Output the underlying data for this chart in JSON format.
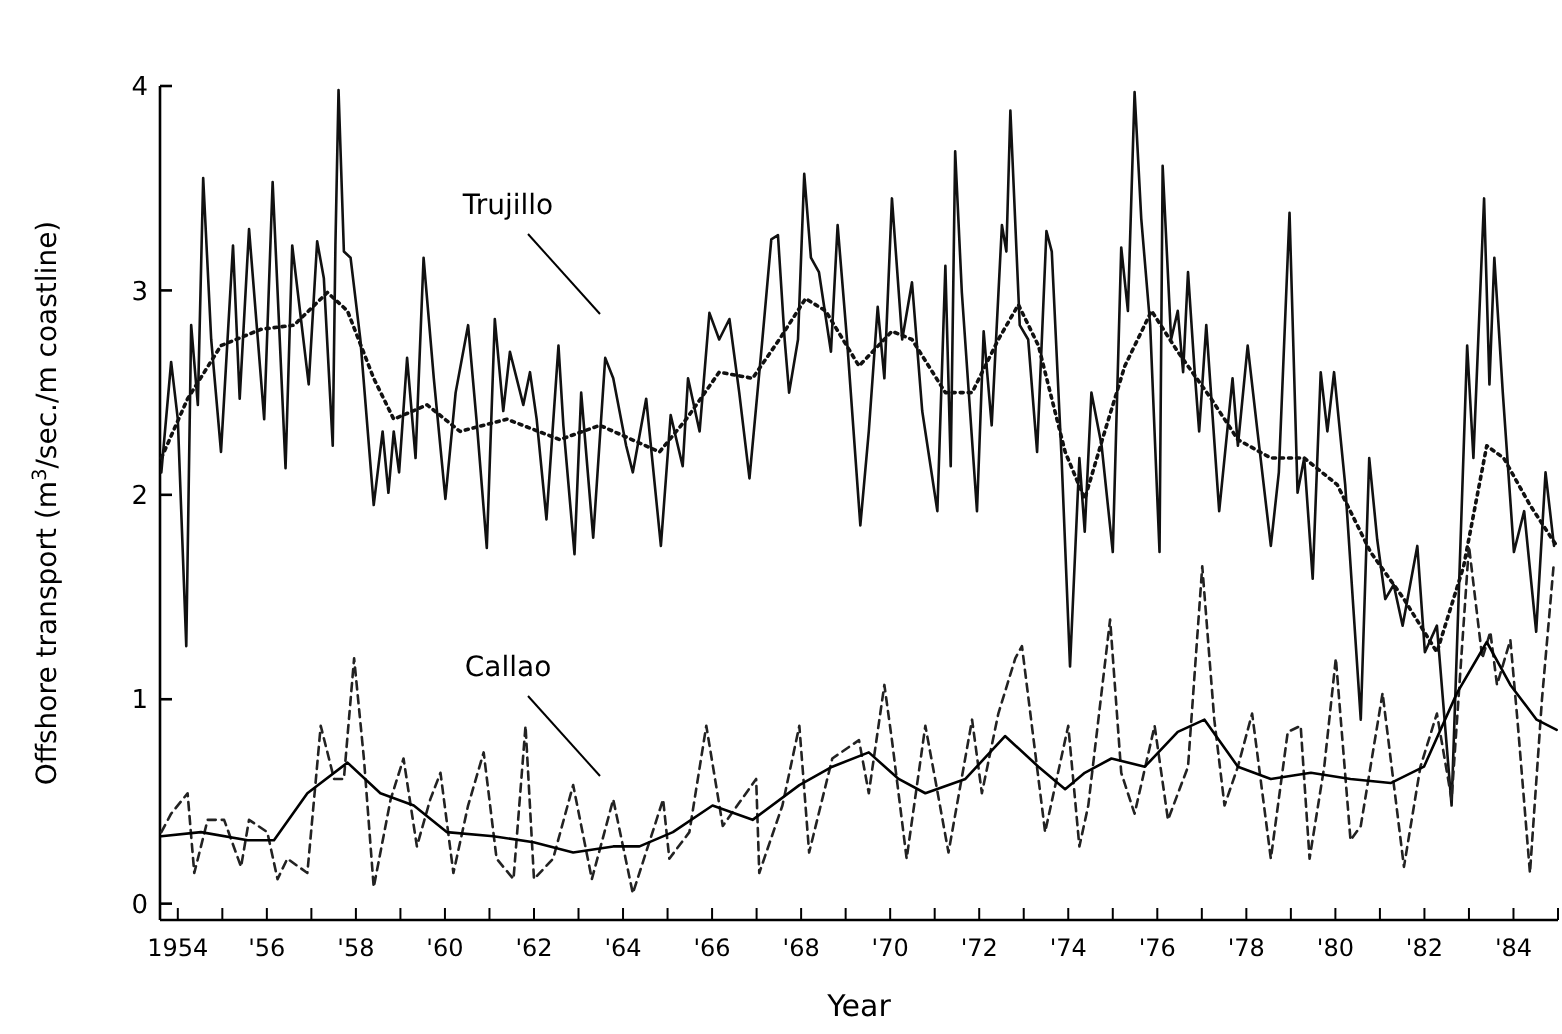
{
  "chart_data": {
    "type": "line",
    "xlabel": "Year",
    "ylabel": "Offshore transport (m$^{3}$/sec./m coastline)",
    "xlim": [
      1953.6,
      1985
    ],
    "ylim": [
      -0.08,
      4
    ],
    "xticks": [
      {
        "value": 1954,
        "label": "1954"
      },
      {
        "value": 1955,
        "label": null
      },
      {
        "value": 1956,
        "label": "'56"
      },
      {
        "value": 1957,
        "label": null
      },
      {
        "value": 1958,
        "label": "'58"
      },
      {
        "value": 1959,
        "label": null
      },
      {
        "value": 1960,
        "label": "'60"
      },
      {
        "value": 1961,
        "label": null
      },
      {
        "value": 1962,
        "label": "'62"
      },
      {
        "value": 1963,
        "label": null
      },
      {
        "value": 1964,
        "label": "'64"
      },
      {
        "value": 1965,
        "label": null
      },
      {
        "value": 1966,
        "label": "'66"
      },
      {
        "value": 1967,
        "label": null
      },
      {
        "value": 1968,
        "label": "'68"
      },
      {
        "value": 1969,
        "label": null
      },
      {
        "value": 1970,
        "label": "'70"
      },
      {
        "value": 1971,
        "label": null
      },
      {
        "value": 1972,
        "label": "'72"
      },
      {
        "value": 1973,
        "label": null
      },
      {
        "value": 1974,
        "label": "'74"
      },
      {
        "value": 1975,
        "label": null
      },
      {
        "value": 1976,
        "label": "'76"
      },
      {
        "value": 1977,
        "label": null
      },
      {
        "value": 1978,
        "label": "'78"
      },
      {
        "value": 1979,
        "label": null
      },
      {
        "value": 1980,
        "label": "'80"
      },
      {
        "value": 1981,
        "label": null
      },
      {
        "value": 1982,
        "label": "'82"
      },
      {
        "value": 1983,
        "label": null
      },
      {
        "value": 1984,
        "label": "'84"
      },
      {
        "value": 1985,
        "label": null
      }
    ],
    "yticks": [
      0,
      1,
      2,
      3,
      4
    ],
    "grid": false,
    "marker": "none",
    "annotations": [
      "Trujillo",
      "Callao"
    ],
    "series": [
      {
        "color": "#111111",
        "line_style": "solid",
        "x": [
          1953.63,
          1953.85,
          1954.0,
          1954.19,
          1954.3,
          1954.45,
          1954.57,
          1954.75,
          1954.97,
          1955.24,
          1955.39,
          1955.6,
          1955.94,
          1956.13,
          1956.42,
          1956.57,
          1956.94,
          1957.13,
          1957.28,
          1957.48,
          1957.54,
          1957.61,
          1957.73,
          1957.88,
          1958.1,
          1958.4,
          1958.6,
          1958.73,
          1958.85,
          1958.97,
          1959.15,
          1959.34,
          1959.52,
          1959.75,
          1960.01,
          1960.24,
          1960.52,
          1960.72,
          1960.94,
          1961.12,
          1961.31,
          1961.46,
          1961.76,
          1961.91,
          1962.06,
          1962.28,
          1962.55,
          1962.66,
          1962.91,
          1963.06,
          1963.33,
          1963.6,
          1963.78,
          1964.07,
          1964.22,
          1964.52,
          1964.85,
          1965.07,
          1965.34,
          1965.46,
          1965.72,
          1965.94,
          1966.16,
          1966.39,
          1966.61,
          1966.84,
          1967.13,
          1967.33,
          1967.48,
          1967.63,
          1967.73,
          1967.93,
          1968.07,
          1968.22,
          1968.4,
          1968.67,
          1968.82,
          1969.03,
          1969.33,
          1969.52,
          1969.72,
          1969.87,
          1970.04,
          1970.27,
          1970.49,
          1970.72,
          1971.06,
          1971.24,
          1971.36,
          1971.46,
          1971.61,
          1971.95,
          1972.1,
          1972.28,
          1972.51,
          1972.61,
          1972.7,
          1972.91,
          1973.1,
          1973.3,
          1973.51,
          1973.63,
          1973.85,
          1974.04,
          1974.25,
          1974.37,
          1974.52,
          1974.75,
          1975.0,
          1975.19,
          1975.34,
          1975.49,
          1975.64,
          1975.84,
          1976.05,
          1976.12,
          1976.31,
          1976.46,
          1976.58,
          1976.69,
          1976.84,
          1976.94,
          1977.1,
          1977.39,
          1977.69,
          1977.81,
          1978.03,
          1978.25,
          1978.55,
          1978.73,
          1978.97,
          1979.15,
          1979.3,
          1979.49,
          1979.67,
          1979.82,
          1979.97,
          1980.22,
          1980.57,
          1980.76,
          1980.94,
          1981.12,
          1981.31,
          1981.51,
          1981.84,
          1982.01,
          1982.28,
          1982.61,
          1982.96,
          1983.1,
          1983.34,
          1983.46,
          1983.57,
          1983.76,
          1984.01,
          1984.24,
          1984.51,
          1984.72,
          1984.91
        ],
        "values": [
          2.11,
          2.65,
          2.37,
          1.26,
          2.83,
          2.44,
          3.55,
          2.76,
          2.21,
          3.22,
          2.47,
          3.3,
          2.37,
          3.53,
          2.13,
          3.22,
          2.54,
          3.24,
          3.06,
          2.24,
          3.22,
          3.98,
          3.19,
          3.16,
          2.76,
          1.95,
          2.31,
          2.01,
          2.31,
          2.11,
          2.67,
          2.18,
          3.16,
          2.57,
          1.98,
          2.5,
          2.83,
          2.34,
          1.74,
          2.86,
          2.41,
          2.7,
          2.44,
          2.6,
          2.37,
          1.88,
          2.73,
          2.34,
          1.71,
          2.5,
          1.79,
          2.67,
          2.57,
          2.24,
          2.11,
          2.47,
          1.75,
          2.39,
          2.14,
          2.57,
          2.31,
          2.89,
          2.76,
          2.86,
          2.5,
          2.08,
          2.76,
          3.25,
          3.27,
          2.76,
          2.5,
          2.76,
          3.57,
          3.16,
          3.09,
          2.7,
          3.32,
          2.76,
          1.85,
          2.31,
          2.92,
          2.57,
          3.45,
          2.76,
          3.04,
          2.41,
          1.92,
          3.12,
          2.14,
          3.68,
          2.99,
          1.92,
          2.8,
          2.34,
          3.32,
          3.19,
          3.88,
          2.83,
          2.76,
          2.21,
          3.29,
          3.19,
          2.18,
          1.16,
          2.18,
          1.82,
          2.5,
          2.24,
          1.72,
          3.21,
          2.9,
          3.97,
          3.35,
          2.83,
          1.72,
          3.61,
          2.76,
          2.9,
          2.6,
          3.09,
          2.6,
          2.31,
          2.83,
          1.92,
          2.57,
          2.24,
          2.73,
          2.31,
          1.75,
          2.11,
          3.38,
          2.01,
          2.18,
          1.59,
          2.6,
          2.31,
          2.6,
          2.05,
          0.9,
          2.18,
          1.78,
          1.49,
          1.56,
          1.36,
          1.75,
          1.23,
          1.36,
          0.48,
          2.73,
          2.18,
          3.45,
          2.54,
          3.16,
          2.5,
          1.72,
          1.92,
          1.33,
          2.11,
          1.75
        ]
      },
      {
        "color": "#111111",
        "line_style": "dotted",
        "x": [
          1953.63,
          1954.22,
          1954.97,
          1955.87,
          1956.61,
          1957.36,
          1957.81,
          1958.4,
          1958.85,
          1959.6,
          1960.34,
          1961.39,
          1962.58,
          1963.48,
          1964.82,
          1965.42,
          1966.16,
          1966.91,
          1967.51,
          1968.1,
          1968.55,
          1969.3,
          1970.04,
          1970.49,
          1971.24,
          1971.84,
          1972.43,
          1972.88,
          1973.33,
          1973.93,
          1974.37,
          1974.82,
          1975.27,
          1975.87,
          1976.46,
          1977.21,
          1977.81,
          1978.55,
          1979.3,
          1980.04,
          1980.79,
          1981.54,
          1982.28,
          1982.88,
          1983.4,
          1983.78,
          1984.37,
          1984.97
        ],
        "values": [
          2.18,
          2.47,
          2.73,
          2.81,
          2.83,
          2.99,
          2.9,
          2.57,
          2.37,
          2.44,
          2.31,
          2.37,
          2.27,
          2.34,
          2.21,
          2.37,
          2.6,
          2.57,
          2.76,
          2.96,
          2.9,
          2.63,
          2.8,
          2.76,
          2.5,
          2.5,
          2.76,
          2.93,
          2.73,
          2.21,
          1.98,
          2.31,
          2.63,
          2.9,
          2.7,
          2.47,
          2.27,
          2.18,
          2.18,
          2.05,
          1.72,
          1.49,
          1.23,
          1.65,
          2.24,
          2.18,
          1.95,
          1.75
        ]
      },
      {
        "color": "#222222",
        "line_style": "dashed",
        "x": [
          1953.63,
          1953.85,
          1954.22,
          1954.37,
          1954.67,
          1955.04,
          1955.42,
          1955.6,
          1956.01,
          1956.24,
          1956.46,
          1956.91,
          1957.21,
          1957.51,
          1957.73,
          1957.96,
          1958.18,
          1958.4,
          1958.78,
          1959.07,
          1959.37,
          1959.67,
          1959.9,
          1960.19,
          1960.52,
          1960.87,
          1961.16,
          1961.54,
          1961.81,
          1962.0,
          1962.43,
          1962.88,
          1963.3,
          1963.78,
          1964.22,
          1964.9,
          1965.04,
          1965.49,
          1965.87,
          1966.24,
          1966.99,
          1967.06,
          1967.58,
          1967.96,
          1968.18,
          1968.7,
          1969.3,
          1969.52,
          1969.87,
          1970.04,
          1970.37,
          1970.79,
          1971.01,
          1971.31,
          1971.84,
          1972.06,
          1972.43,
          1972.81,
          1972.96,
          1973.48,
          1974.0,
          1974.25,
          1974.45,
          1974.94,
          1975.19,
          1975.49,
          1975.94,
          1976.24,
          1976.69,
          1977.01,
          1977.28,
          1977.51,
          1977.81,
          1978.13,
          1978.55,
          1978.93,
          1979.22,
          1979.42,
          1979.75,
          1980.01,
          1980.34,
          1980.57,
          1981.06,
          1981.54,
          1981.91,
          1982.28,
          1982.61,
          1983.0,
          1983.3,
          1983.48,
          1983.63,
          1983.93,
          1984.1,
          1984.37,
          1984.64,
          1984.9
        ],
        "values": [
          0.35,
          0.44,
          0.54,
          0.15,
          0.41,
          0.41,
          0.18,
          0.41,
          0.35,
          0.12,
          0.22,
          0.15,
          0.87,
          0.61,
          0.61,
          1.2,
          0.71,
          0.08,
          0.51,
          0.71,
          0.28,
          0.51,
          0.64,
          0.15,
          0.48,
          0.74,
          0.22,
          0.12,
          0.87,
          0.12,
          0.22,
          0.58,
          0.12,
          0.51,
          0.05,
          0.51,
          0.22,
          0.35,
          0.87,
          0.38,
          0.61,
          0.15,
          0.48,
          0.87,
          0.25,
          0.71,
          0.8,
          0.54,
          1.07,
          0.8,
          0.22,
          0.87,
          0.61,
          0.25,
          0.9,
          0.54,
          0.93,
          1.2,
          1.26,
          0.35,
          0.87,
          0.28,
          0.48,
          1.39,
          0.64,
          0.44,
          0.87,
          0.41,
          0.67,
          1.65,
          0.9,
          0.48,
          0.67,
          0.93,
          0.22,
          0.84,
          0.87,
          0.22,
          0.67,
          1.2,
          0.31,
          0.38,
          1.03,
          0.18,
          0.67,
          0.93,
          0.51,
          1.75,
          1.2,
          1.33,
          1.07,
          1.29,
          0.87,
          0.15,
          1.0,
          1.65
        ]
      },
      {
        "color": "#000000",
        "line_style": "solid",
        "x": [
          1953.63,
          1954.52,
          1955.57,
          1956.16,
          1956.91,
          1957.81,
          1958.55,
          1959.3,
          1960.04,
          1961.09,
          1961.99,
          1962.88,
          1963.78,
          1964.37,
          1965.12,
          1966.01,
          1966.91,
          1967.96,
          1968.7,
          1969.52,
          1970.19,
          1970.79,
          1971.69,
          1972.58,
          1973.33,
          1973.93,
          1974.37,
          1974.97,
          1975.72,
          1976.46,
          1977.06,
          1977.81,
          1978.55,
          1979.45,
          1980.34,
          1981.24,
          1981.99,
          1982.73,
          1983.4,
          1983.93,
          1984.52,
          1984.97
        ],
        "values": [
          0.33,
          0.35,
          0.31,
          0.31,
          0.54,
          0.69,
          0.54,
          0.48,
          0.35,
          0.33,
          0.3,
          0.25,
          0.28,
          0.28,
          0.35,
          0.48,
          0.41,
          0.58,
          0.67,
          0.74,
          0.61,
          0.54,
          0.61,
          0.82,
          0.67,
          0.56,
          0.64,
          0.71,
          0.67,
          0.84,
          0.9,
          0.67,
          0.61,
          0.64,
          0.61,
          0.59,
          0.67,
          1.03,
          1.28,
          1.07,
          0.9,
          0.85
        ]
      }
    ]
  }
}
